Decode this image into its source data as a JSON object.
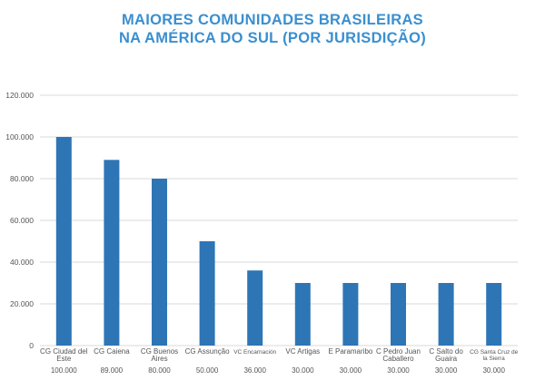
{
  "chart_data": {
    "type": "bar",
    "title_lines": [
      "MAIORES COMUNIDADES BRASILEIRAS",
      "NA AMÉRICA DO SUL (POR JURISDIÇÃO)"
    ],
    "categories": [
      [
        "CG Ciudad del",
        "Este"
      ],
      [
        "CG Caiena"
      ],
      [
        "CG Buenos",
        "Aires"
      ],
      [
        "CG Assunção"
      ],
      [
        "VC Encarnación"
      ],
      [
        "VC Artigas"
      ],
      [
        "E Paramaribo"
      ],
      [
        "C Pedro Juan",
        "Caballero"
      ],
      [
        "C Salto do",
        "Guaira"
      ],
      [
        "CG Santa Cruz de",
        "la Sierra"
      ]
    ],
    "values": [
      100000,
      89000,
      80000,
      50000,
      36000,
      30000,
      30000,
      30000,
      30000,
      30000
    ],
    "value_labels": [
      "100.000",
      "89.000",
      "80.000",
      "50.000",
      "36.000",
      "30.000",
      "30.000",
      "30.000",
      "30.000",
      "30.000"
    ],
    "y_ticks": [
      0,
      20000,
      40000,
      60000,
      80000,
      100000,
      120000
    ],
    "y_tick_labels": [
      "0",
      "20.000",
      "40.000",
      "60.000",
      "80.000",
      "100.000",
      "120.000"
    ],
    "ylim": [
      0,
      120000
    ],
    "grid": true,
    "bar_color": "#2e75b6",
    "grid_color": "#d9d9d9",
    "title_color": "#3a8fd0"
  }
}
